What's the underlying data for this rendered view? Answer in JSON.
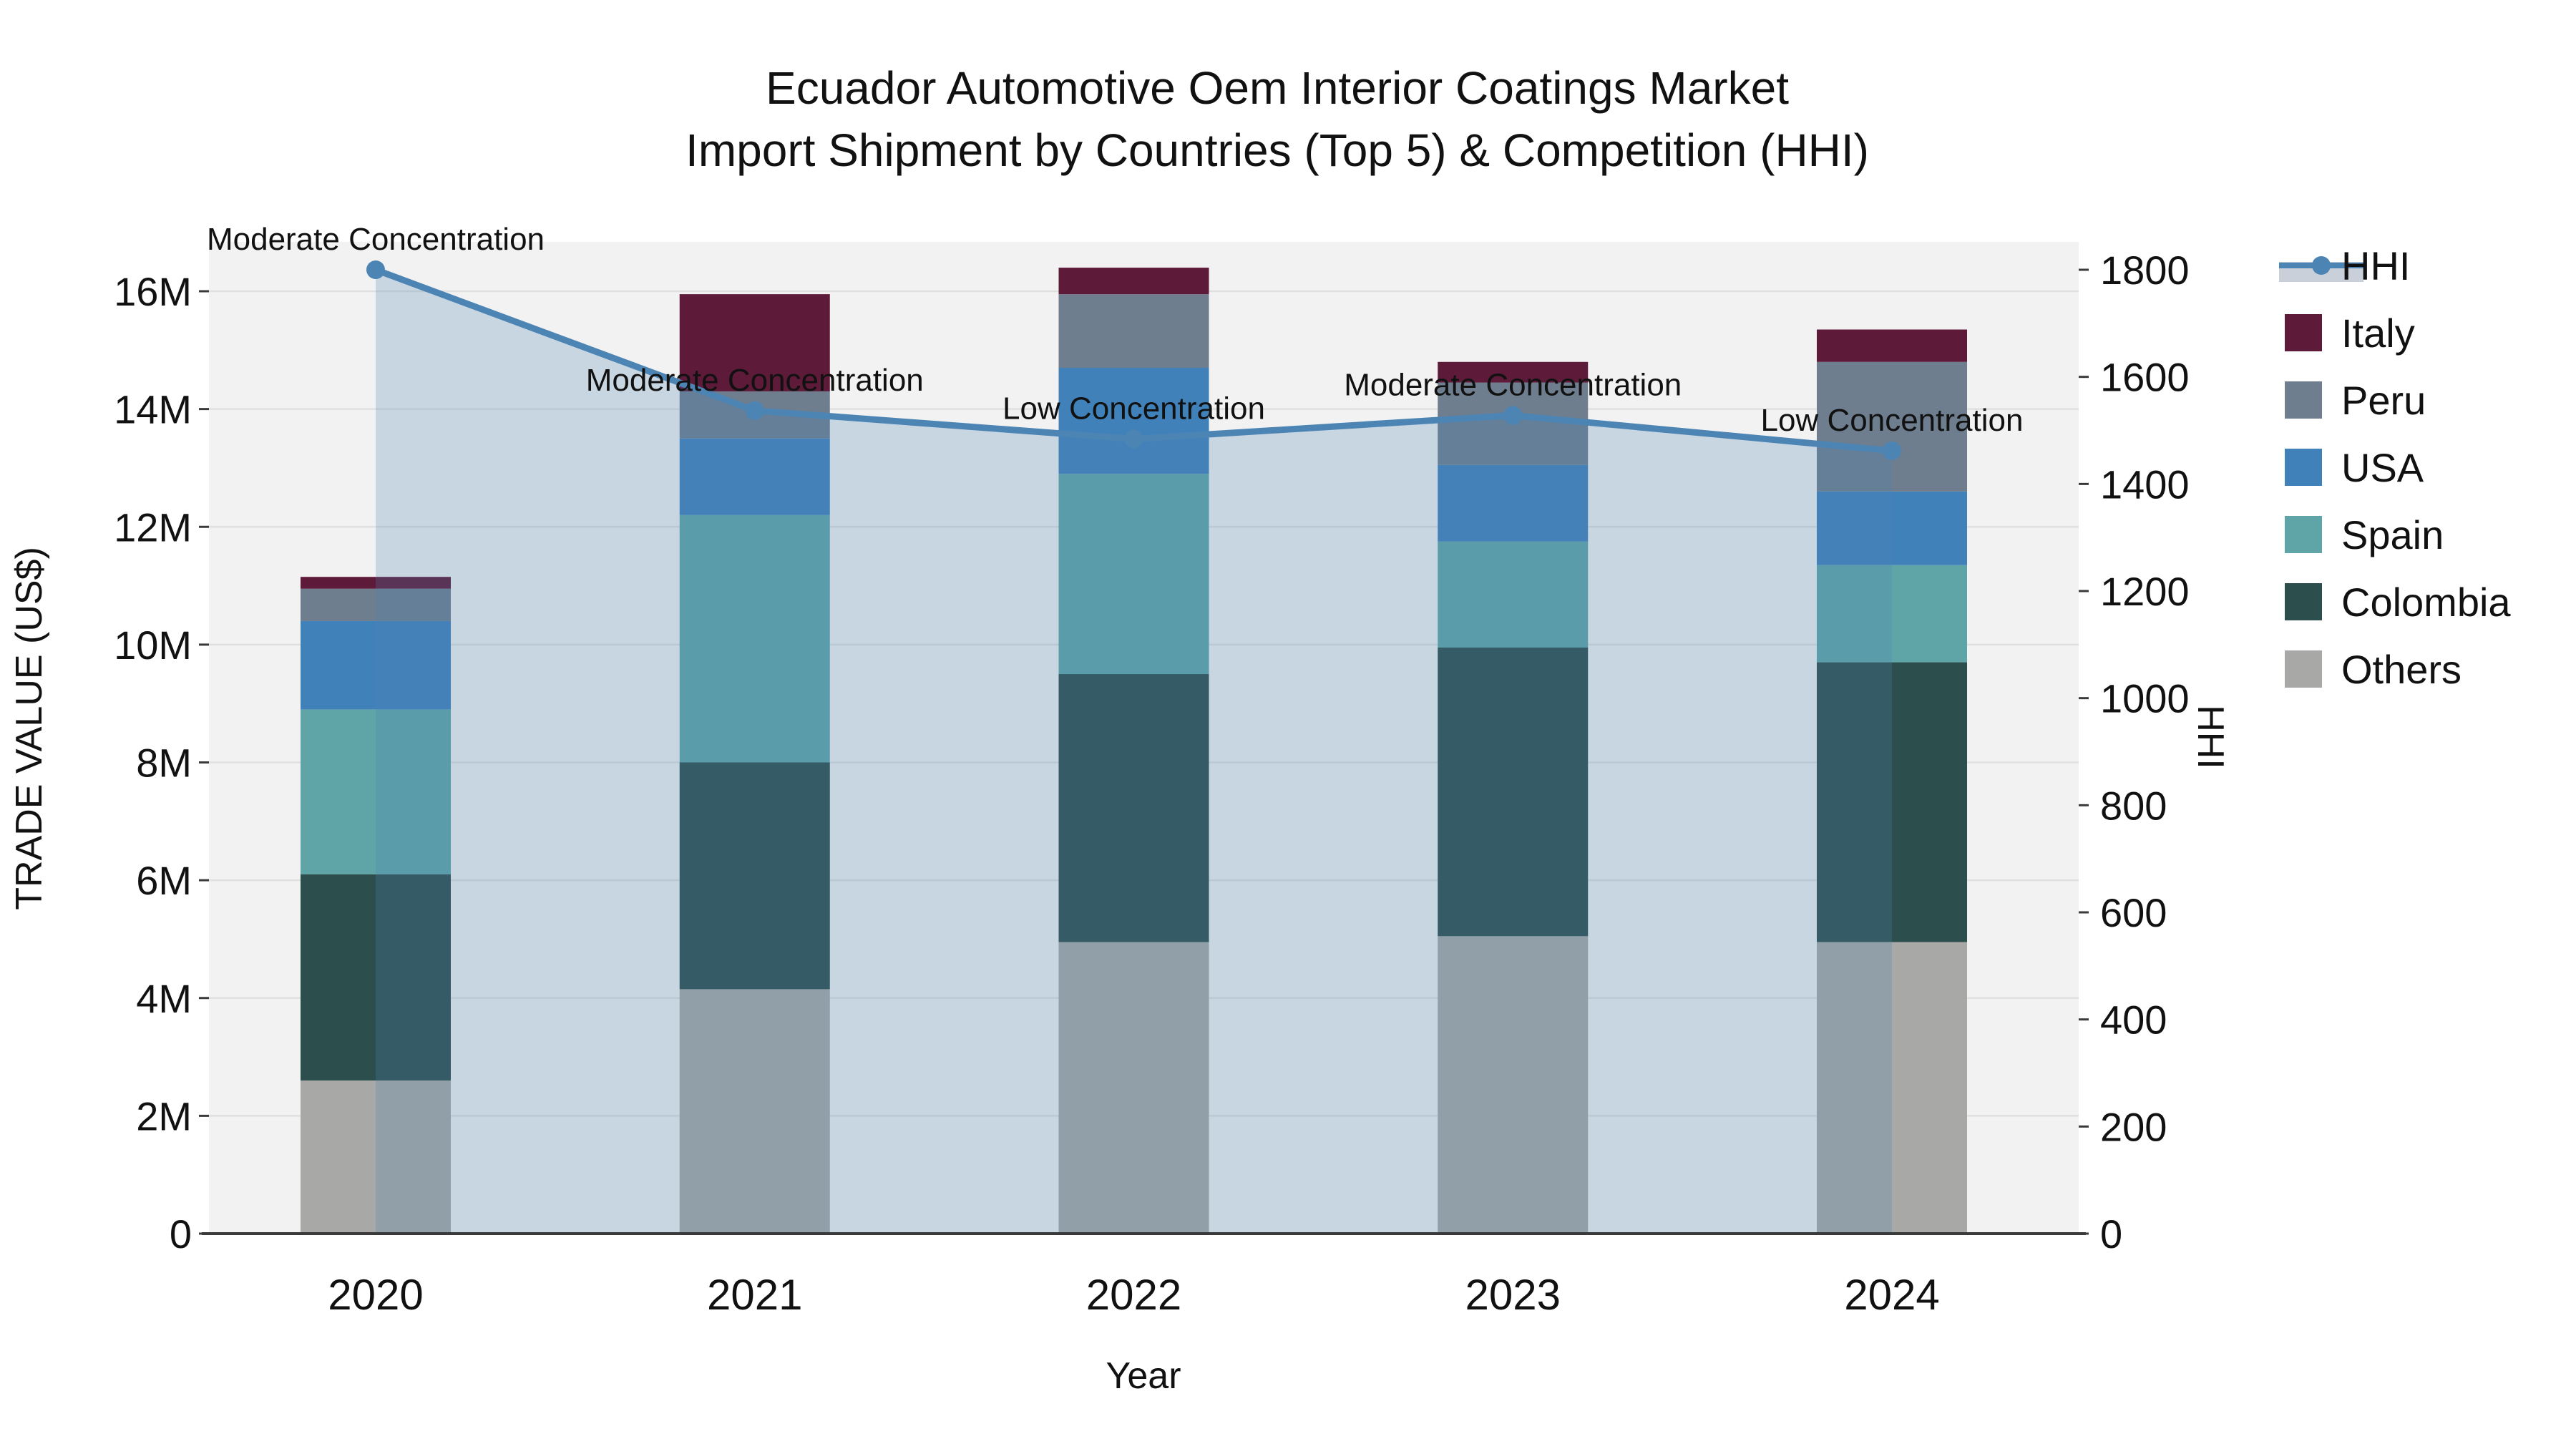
{
  "title": {
    "line1": "Ecuador Automotive Oem Interior Coatings Market",
    "line2": "Import Shipment by Countries (Top 5) & Competition (HHI)"
  },
  "chart_data": {
    "type": "bar",
    "stacked": true,
    "grid": true,
    "plot_background": "#f2f2f2",
    "categories": [
      "2020",
      "2021",
      "2022",
      "2023",
      "2024"
    ],
    "bar_series": [
      {
        "name": "Others",
        "color": "#a8a8a6",
        "values_musd": [
          2.6,
          4.15,
          4.95,
          5.05,
          4.95
        ]
      },
      {
        "name": "Colombia",
        "color": "#2c4e4d",
        "values_musd": [
          3.5,
          3.85,
          4.55,
          4.9,
          4.75
        ]
      },
      {
        "name": "Spain",
        "color": "#5fa4a6",
        "values_musd": [
          2.8,
          4.2,
          3.4,
          1.8,
          1.65
        ]
      },
      {
        "name": "USA",
        "color": "#4181ba",
        "values_musd": [
          1.5,
          1.3,
          1.8,
          1.3,
          1.25
        ]
      },
      {
        "name": "Peru",
        "color": "#6e7e8f",
        "values_musd": [
          0.55,
          0.8,
          1.25,
          1.4,
          2.2
        ]
      },
      {
        "name": "Italy",
        "color": "#5e1a39",
        "values_musd": [
          0.2,
          1.65,
          0.45,
          0.35,
          0.55
        ]
      }
    ],
    "bar_totals_musd": [
      11.15,
      15.95,
      16.4,
      14.8,
      15.35
    ],
    "line_series": {
      "name": "HHI",
      "axis": "right",
      "color": "#4c84b4",
      "area_fill": "rgba(76,132,180,0.25)",
      "values": [
        1800,
        1537,
        1484,
        1528,
        1462
      ]
    },
    "annotations": [
      {
        "x": "2020",
        "text": "Moderate Concentration"
      },
      {
        "x": "2021",
        "text": "Moderate Concentration"
      },
      {
        "x": "2022",
        "text": "Low Concentration"
      },
      {
        "x": "2023",
        "text": "Moderate Concentration"
      },
      {
        "x": "2024",
        "text": "Low Concentration"
      }
    ],
    "axes": {
      "x": {
        "title": "Year",
        "tick_labels": [
          "2020",
          "2021",
          "2022",
          "2023",
          "2024"
        ]
      },
      "left": {
        "title": "TRADE VALUE (US$)",
        "unit": "US$ millions",
        "tick_labels": [
          "0",
          "2M",
          "4M",
          "6M",
          "8M",
          "10M",
          "12M",
          "14M",
          "16M"
        ],
        "tick_values_musd": [
          0,
          2,
          4,
          6,
          8,
          10,
          12,
          14,
          16
        ],
        "range_musd": [
          0,
          16.84
        ]
      },
      "right": {
        "title": "HHI",
        "tick_labels": [
          "0",
          "200",
          "400",
          "600",
          "800",
          "1000",
          "1200",
          "1400",
          "1600",
          "1800"
        ],
        "tick_values": [
          0,
          200,
          400,
          600,
          800,
          1000,
          1200,
          1400,
          1600,
          1800
        ],
        "range": [
          0,
          1851
        ]
      }
    },
    "legend": {
      "position": "right",
      "entries": [
        {
          "label": "HHI",
          "type": "line",
          "color": "#4c84b4",
          "band_color": "#c9d0d9"
        },
        {
          "label": "Italy",
          "type": "swatch",
          "color": "#5e1a39"
        },
        {
          "label": "Peru",
          "type": "swatch",
          "color": "#6e7e8f"
        },
        {
          "label": "USA",
          "type": "swatch",
          "color": "#4181ba"
        },
        {
          "label": "Spain",
          "type": "swatch",
          "color": "#5fa4a6"
        },
        {
          "label": "Colombia",
          "type": "swatch",
          "color": "#2c4e4d"
        },
        {
          "label": "Others",
          "type": "swatch",
          "color": "#a8a8a6"
        }
      ]
    }
  }
}
